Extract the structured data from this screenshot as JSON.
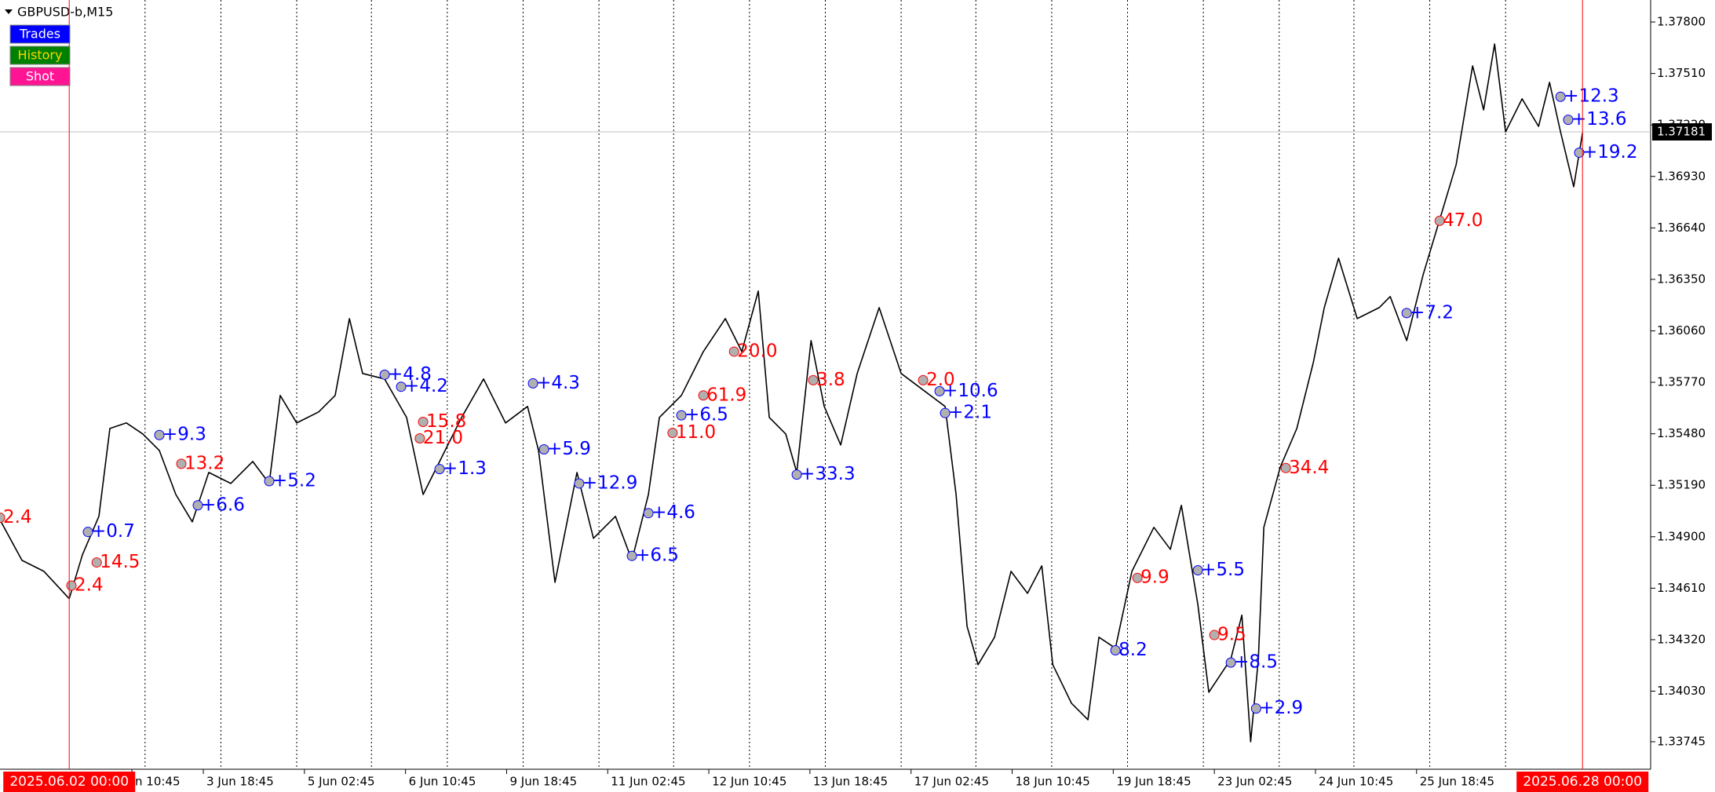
{
  "chart_data": {
    "type": "line",
    "title": "GBPUSD-b,M15",
    "buttons": [
      {
        "text": "Trades",
        "color": "#0000ff"
      },
      {
        "text": "History",
        "color": "#008000"
      },
      {
        "text": "Shot",
        "color": "#ff1493"
      }
    ],
    "xlim": [
      0,
      1502
    ],
    "ylim": [
      1.3359,
      1.37924
    ],
    "yticks": [
      {
        "value": 1.378,
        "label": "1.37800"
      },
      {
        "value": 1.3751,
        "label": "1.37510"
      },
      {
        "value": 1.3722,
        "label": "1.37220"
      },
      {
        "value": 1.3693,
        "label": "1.36930"
      },
      {
        "value": 1.3664,
        "label": "1.36640"
      },
      {
        "value": 1.3635,
        "label": "1.36350"
      },
      {
        "value": 1.3606,
        "label": "1.36060"
      },
      {
        "value": 1.3577,
        "label": "1.35770"
      },
      {
        "value": 1.3548,
        "label": "1.35480"
      },
      {
        "value": 1.3519,
        "label": "1.35190"
      },
      {
        "value": 1.349,
        "label": "1.34900"
      },
      {
        "value": 1.3461,
        "label": "1.34610"
      },
      {
        "value": 1.3432,
        "label": "1.34320"
      },
      {
        "value": 1.3403,
        "label": "1.34030"
      },
      {
        "value": 1.33745,
        "label": "1.33745"
      }
    ],
    "xticks": [
      {
        "value": 120,
        "label": "n 10:45"
      },
      {
        "value": 185,
        "label": "3 Jun 18:45"
      },
      {
        "value": 277,
        "label": "5 Jun 02:45"
      },
      {
        "value": 369,
        "label": "6 Jun 10:45"
      },
      {
        "value": 461,
        "label": "9 Jun 18:45"
      },
      {
        "value": 553,
        "label": "11 Jun 02:45"
      },
      {
        "value": 645,
        "label": "12 Jun 10:45"
      },
      {
        "value": 737,
        "label": "13 Jun 18:45"
      },
      {
        "value": 829,
        "label": "17 Jun 02:45"
      },
      {
        "value": 921,
        "label": "18 Jun 10:45"
      },
      {
        "value": 1013,
        "label": "19 Jun 18:45"
      },
      {
        "value": 1105,
        "label": "23 Jun 02:45"
      },
      {
        "value": 1197,
        "label": "24 Jun 10:45"
      },
      {
        "value": 1289,
        "label": "25 Jun 18:45"
      }
    ],
    "xgrid": [
      132,
      201,
      270,
      338,
      407,
      476,
      545,
      613,
      682,
      751,
      820,
      888,
      957,
      1026,
      1095,
      1164,
      1232,
      1301,
      1370
    ],
    "period_markers": [
      {
        "value": 63,
        "label": "2025.06.02 00:00"
      },
      {
        "value": 1440,
        "label": "2025.06.28 00:00"
      }
    ],
    "current_price": 1.37181,
    "series": [
      {
        "name": "GBPUSD-b",
        "color": "#000000",
        "x": [
          0,
          20,
          40,
          63,
          75,
          90,
          100,
          115,
          130,
          145,
          160,
          175,
          190,
          210,
          230,
          245,
          255,
          270,
          290,
          305,
          318,
          330,
          350,
          370,
          385,
          400,
          420,
          440,
          460,
          480,
          490,
          505,
          515,
          525,
          540,
          560,
          575,
          590,
          600,
          620,
          640,
          660,
          675,
          690,
          700,
          715,
          725,
          738,
          750,
          765,
          780,
          800,
          820,
          840,
          860,
          870,
          880,
          890,
          905,
          920,
          935,
          948,
          958,
          975,
          990,
          1000,
          1015,
          1030,
          1050,
          1065,
          1075,
          1090,
          1100,
          1120,
          1130,
          1138,
          1145,
          1150,
          1165,
          1180,
          1195,
          1205,
          1218,
          1235,
          1255,
          1265,
          1280,
          1295,
          1310,
          1325,
          1340,
          1350,
          1360,
          1370,
          1385,
          1400,
          1410,
          1420,
          1432,
          1440
        ],
        "values": [
          1.34995,
          1.34767,
          1.34705,
          1.34551,
          1.34798,
          1.35015,
          1.3551,
          1.35541,
          1.35479,
          1.35386,
          1.35138,
          1.34984,
          1.35262,
          1.352,
          1.35324,
          1.352,
          1.35696,
          1.35541,
          1.35603,
          1.35696,
          1.36129,
          1.3582,
          1.35789,
          1.35572,
          1.35138,
          1.35324,
          1.35572,
          1.35789,
          1.35541,
          1.35634,
          1.35386,
          1.34643,
          1.34953,
          1.35262,
          1.34891,
          1.35015,
          1.34767,
          1.35138,
          1.35572,
          1.35696,
          1.35943,
          1.36129,
          1.35943,
          1.36284,
          1.35572,
          1.35479,
          1.35262,
          1.36005,
          1.35634,
          1.35417,
          1.3582,
          1.36191,
          1.3582,
          1.35727,
          1.35634,
          1.35138,
          1.34395,
          1.34179,
          1.34334,
          1.34705,
          1.34581,
          1.34736,
          1.34179,
          1.33962,
          1.33869,
          1.34334,
          1.34272,
          1.34705,
          1.34953,
          1.34829,
          1.35077,
          1.34519,
          1.34024,
          1.3421,
          1.34458,
          1.33745,
          1.3421,
          1.34953,
          1.35293,
          1.3551,
          1.35881,
          1.36191,
          1.36469,
          1.36129,
          1.36191,
          1.36253,
          1.36005,
          1.36377,
          1.36686,
          1.36996,
          1.37553,
          1.37305,
          1.37676,
          1.37181,
          1.37367,
          1.37212,
          1.3746,
          1.37181,
          1.36872,
          1.37175
        ]
      }
    ],
    "annotations": [
      {
        "text": "+12.3",
        "x": 1420,
        "y": 1.37379,
        "color": "#0000ff"
      },
      {
        "text": "+13.6",
        "x": 1427,
        "y": 1.37249,
        "color": "#0000ff"
      },
      {
        "text": "+19.2",
        "x": 1437,
        "y": 1.37064,
        "color": "#0000ff"
      },
      {
        "text": "47.0",
        "x": 1310,
        "y": 1.3668,
        "color": "#ff0000"
      },
      {
        "text": "+7.2",
        "x": 1280,
        "y": 1.3616,
        "color": "#0000ff"
      },
      {
        "text": "34.4",
        "x": 1170,
        "y": 1.35287,
        "color": "#ff0000"
      },
      {
        "text": "+5.5",
        "x": 1090,
        "y": 1.34711,
        "color": "#0000ff"
      },
      {
        "text": "9.5",
        "x": 1105,
        "y": 1.34346,
        "color": "#ff0000"
      },
      {
        "text": "+8.5",
        "x": 1120,
        "y": 1.34191,
        "color": "#0000ff"
      },
      {
        "text": "+2.9",
        "x": 1143,
        "y": 1.33932,
        "color": "#0000ff"
      },
      {
        "text": "9.9",
        "x": 1035,
        "y": 1.34668,
        "color": "#ff0000"
      },
      {
        "text": "8.2",
        "x": 1015,
        "y": 1.3426,
        "color": "#0000ff"
      },
      {
        "text": "+10.6",
        "x": 855,
        "y": 1.3572,
        "color": "#0000ff"
      },
      {
        "text": "+2.1",
        "x": 860,
        "y": 1.35597,
        "color": "#0000ff"
      },
      {
        "text": "2.0",
        "x": 840,
        "y": 1.35782,
        "color": "#ff0000"
      },
      {
        "text": "+33.3",
        "x": 725,
        "y": 1.3525,
        "color": "#0000ff"
      },
      {
        "text": "3.8",
        "x": 740,
        "y": 1.35782,
        "color": "#ff0000"
      },
      {
        "text": "20.0",
        "x": 668,
        "y": 1.35943,
        "color": "#ff0000"
      },
      {
        "text": "61.9",
        "x": 640,
        "y": 1.35696,
        "color": "#ff0000"
      },
      {
        "text": "+6.5",
        "x": 620,
        "y": 1.35584,
        "color": "#0000ff"
      },
      {
        "text": "11.0",
        "x": 612,
        "y": 1.35485,
        "color": "#ff0000"
      },
      {
        "text": "+4.6",
        "x": 590,
        "y": 1.35033,
        "color": "#0000ff"
      },
      {
        "text": "+6.5",
        "x": 575,
        "y": 1.34792,
        "color": "#0000ff"
      },
      {
        "text": "+12.9",
        "x": 527,
        "y": 1.352,
        "color": "#0000ff"
      },
      {
        "text": "+5.9",
        "x": 495,
        "y": 1.35392,
        "color": "#0000ff"
      },
      {
        "text": "+4.3",
        "x": 485,
        "y": 1.35764,
        "color": "#0000ff"
      },
      {
        "text": "+1.3",
        "x": 400,
        "y": 1.35281,
        "color": "#0000ff"
      },
      {
        "text": "21.0",
        "x": 382,
        "y": 1.35454,
        "color": "#ff0000"
      },
      {
        "text": "15.8",
        "x": 385,
        "y": 1.35547,
        "color": "#ff0000"
      },
      {
        "text": "+4.8",
        "x": 350,
        "y": 1.35813,
        "color": "#0000ff"
      },
      {
        "text": "+4.2",
        "x": 365,
        "y": 1.35745,
        "color": "#0000ff"
      },
      {
        "text": "+5.2",
        "x": 245,
        "y": 1.35213,
        "color": "#0000ff"
      },
      {
        "text": "+6.6",
        "x": 180,
        "y": 1.35077,
        "color": "#0000ff"
      },
      {
        "text": "13.2",
        "x": 165,
        "y": 1.35311,
        "color": "#ff0000"
      },
      {
        "text": "+9.3",
        "x": 145,
        "y": 1.35473,
        "color": "#0000ff"
      },
      {
        "text": "14.5",
        "x": 88,
        "y": 1.34755,
        "color": "#ff0000"
      },
      {
        "text": "+0.7",
        "x": 80,
        "y": 1.34927,
        "color": "#0000ff"
      },
      {
        "text": "2.4",
        "x": 65,
        "y": 1.34625,
        "color": "#ff0000"
      },
      {
        "text": "2.4",
        "x": 0,
        "y": 1.35007,
        "color": "#ff0000"
      }
    ]
  }
}
